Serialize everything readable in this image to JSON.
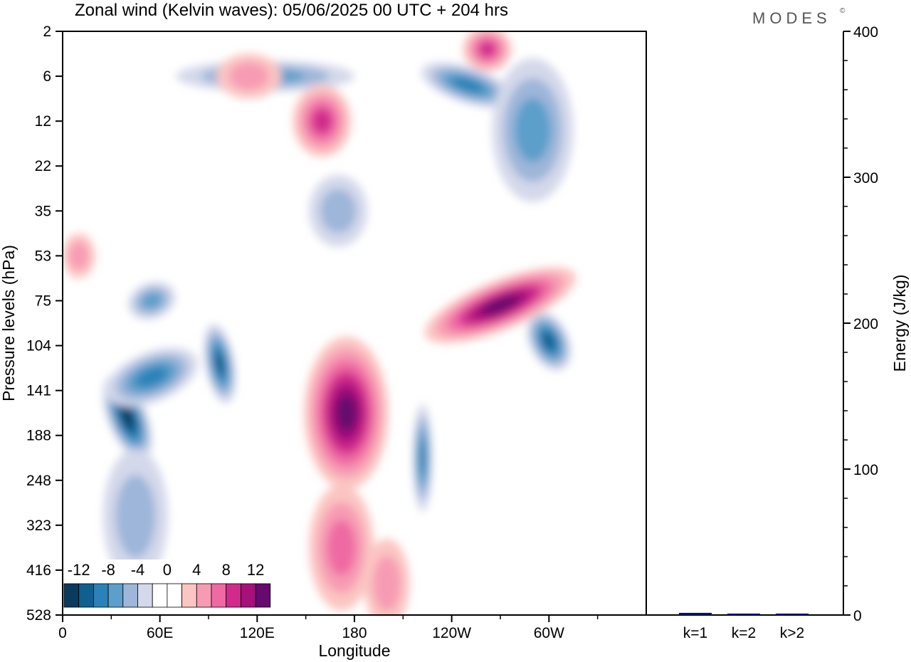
{
  "title": "Zonal wind (Kelvin waves):  05/06/2025  00 UTC  + 204 hrs",
  "logo": "MODES",
  "logo_mark": "©",
  "chart_data": [
    {
      "type": "heatmap",
      "xlabel": "Longitude",
      "ylabel": "Pressure levels (hPa)",
      "x_ticks": [
        "0",
        "60E",
        "120E",
        "180",
        "120W",
        "60W"
      ],
      "y_ticks": [
        "2",
        "6",
        "12",
        "22",
        "35",
        "53",
        "75",
        "104",
        "141",
        "188",
        "248",
        "323",
        "416",
        "528"
      ],
      "colorbar": {
        "labels": [
          "-12",
          "-8",
          "-4",
          "0",
          "4",
          "8",
          "12"
        ],
        "colors": [
          "#0a3a5c",
          "#0f5f8f",
          "#2a82b8",
          "#5c9fcb",
          "#9db6d9",
          "#d4d8ea",
          "#ffffff",
          "#ffffff",
          "#fbc5c2",
          "#f79bb4",
          "#ef6aa3",
          "#d02a8c",
          "#a5107a",
          "#650a6e"
        ]
      },
      "fields": [
        {
          "lon": 40,
          "level": 8.6,
          "sx": 12,
          "sy": 1.0,
          "rot": -22,
          "value": -11
        },
        {
          "lon": 55,
          "level": 7.7,
          "sx": 30,
          "sy": 0.55,
          "rot": -22,
          "value": -7
        },
        {
          "lon": 97,
          "level": 7.4,
          "sx": 9,
          "sy": 0.9,
          "rot": -10,
          "value": -10
        },
        {
          "lon": 125,
          "level": 1.0,
          "sx": 55,
          "sy": 0.35,
          "rot": 0,
          "value": -5
        },
        {
          "lon": 250,
          "level": 1.2,
          "sx": 30,
          "sy": 0.4,
          "rot": 18,
          "value": -7
        },
        {
          "lon": 290,
          "level": 2.2,
          "sx": 25,
          "sy": 1.6,
          "rot": 0,
          "value": -5
        },
        {
          "lon": 222,
          "level": 9.5,
          "sx": 6,
          "sy": 1.2,
          "rot": 0,
          "value": -8
        },
        {
          "lon": 300,
          "level": 6.9,
          "sx": 12,
          "sy": 0.7,
          "rot": -25,
          "value": -9
        },
        {
          "lon": 55,
          "level": 6.0,
          "sx": 15,
          "sy": 0.4,
          "rot": -20,
          "value": -6
        },
        {
          "lon": 170,
          "level": 4.0,
          "sx": 18,
          "sy": 0.8,
          "rot": 0,
          "value": -4
        },
        {
          "lon": 45,
          "level": 10.8,
          "sx": 20,
          "sy": 1.5,
          "rot": 0,
          "value": -4
        },
        {
          "lon": 175,
          "level": 8.5,
          "sx": 26,
          "sy": 1.7,
          "rot": 0,
          "value": 13
        },
        {
          "lon": 172,
          "level": 11.5,
          "sx": 20,
          "sy": 1.4,
          "rot": 0,
          "value": 5
        },
        {
          "lon": 160,
          "level": 2.0,
          "sx": 18,
          "sy": 0.8,
          "rot": 0,
          "value": 7
        },
        {
          "lon": 270,
          "level": 6.1,
          "sx": 50,
          "sy": 0.55,
          "rot": -22,
          "value": 11
        },
        {
          "lon": 262,
          "level": 0.4,
          "sx": 15,
          "sy": 0.5,
          "rot": 0,
          "value": 8
        },
        {
          "lon": 200,
          "level": 12.3,
          "sx": 14,
          "sy": 1.0,
          "rot": 0,
          "value": 4
        },
        {
          "lon": 115,
          "level": 1.0,
          "sx": 20,
          "sy": 0.5,
          "rot": 0,
          "value": 3
        },
        {
          "lon": 10,
          "level": 5.0,
          "sx": 10,
          "sy": 0.5,
          "rot": 0,
          "value": 3
        }
      ]
    },
    {
      "type": "bar",
      "categories": [
        "k=1",
        "k=2",
        "k>2"
      ],
      "values": [
        1.5,
        1.0,
        1.0
      ],
      "ylabel": "Energy (J/kg)",
      "y_ticks": [
        "0",
        "100",
        "200",
        "300",
        "400"
      ],
      "ylim": [
        0,
        400
      ],
      "bar_color": "#0a1560"
    }
  ]
}
